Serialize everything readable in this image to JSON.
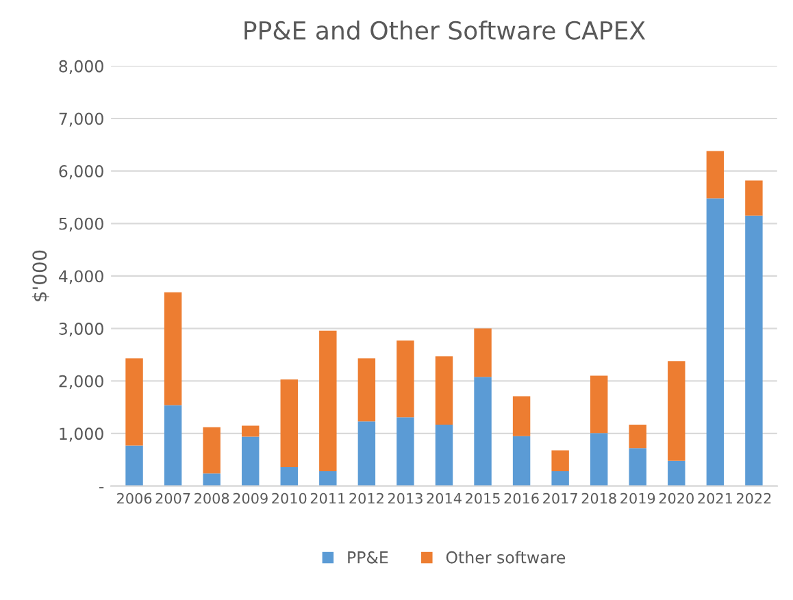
{
  "chart_data": {
    "type": "bar",
    "title": "PP&E and Other Software CAPEX",
    "ylabel": "$'000",
    "categories": [
      "2006",
      "2007",
      "2008",
      "2009",
      "2010",
      "2011",
      "2012",
      "2013",
      "2014",
      "2015",
      "2016",
      "2017",
      "2018",
      "2019",
      "2020",
      "2021",
      "2022"
    ],
    "series": [
      {
        "name": "PP&E",
        "color": "#5b9bd5",
        "values": [
          770,
          1540,
          240,
          940,
          360,
          280,
          1230,
          1310,
          1170,
          2080,
          950,
          280,
          1010,
          720,
          480,
          5480,
          5150
        ]
      },
      {
        "name": "Other software",
        "color": "#ed7d31",
        "values": [
          1660,
          2150,
          880,
          210,
          1670,
          2680,
          1200,
          1460,
          1300,
          920,
          760,
          400,
          1090,
          450,
          1900,
          900,
          670
        ]
      }
    ],
    "stacked": true,
    "ylim": [
      0,
      8000
    ],
    "yticks": [
      {
        "value": 0,
        "label": "-"
      },
      {
        "value": 1000,
        "label": "1,000"
      },
      {
        "value": 2000,
        "label": "2,000"
      },
      {
        "value": 3000,
        "label": "3,000"
      },
      {
        "value": 4000,
        "label": "4,000"
      },
      {
        "value": 5000,
        "label": "5,000"
      },
      {
        "value": 6000,
        "label": "6,000"
      },
      {
        "value": 7000,
        "label": "7,000"
      },
      {
        "value": 8000,
        "label": "8,000"
      }
    ],
    "grid": "y",
    "legend": "bottom"
  }
}
